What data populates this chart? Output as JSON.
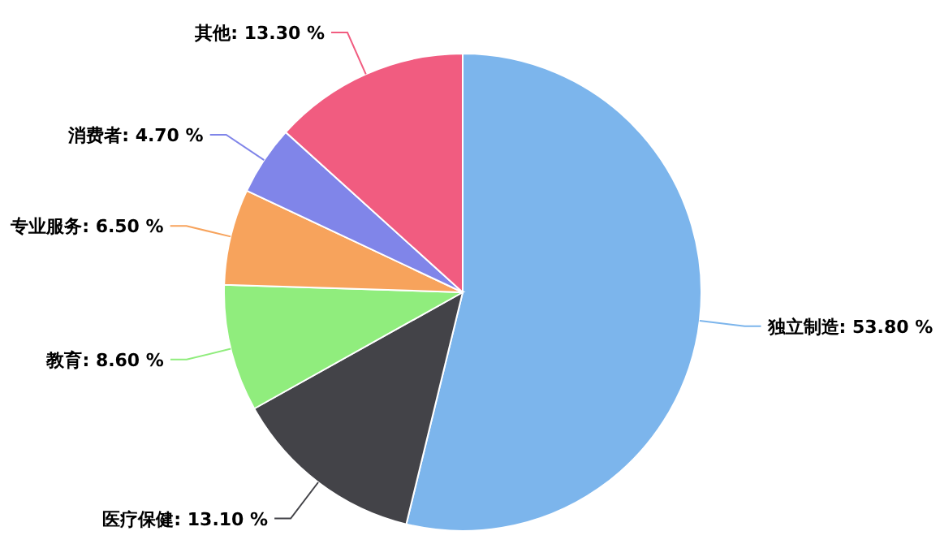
{
  "chart_data": {
    "type": "pie",
    "categories": [
      "独立制造",
      "医疗保健",
      "教育",
      "专业服务",
      "消费者",
      "其他"
    ],
    "values": [
      53.8,
      13.1,
      8.6,
      6.5,
      4.7,
      13.3
    ],
    "value_labels": [
      "53.80 %",
      "13.10 %",
      "8.60 %",
      "6.50 %",
      "4.70 %",
      "13.30 %"
    ],
    "colors": [
      "#7cb5ec",
      "#434348",
      "#90ed7d",
      "#f7a35c",
      "#8085e9",
      "#f15c80"
    ],
    "legend": false
  }
}
